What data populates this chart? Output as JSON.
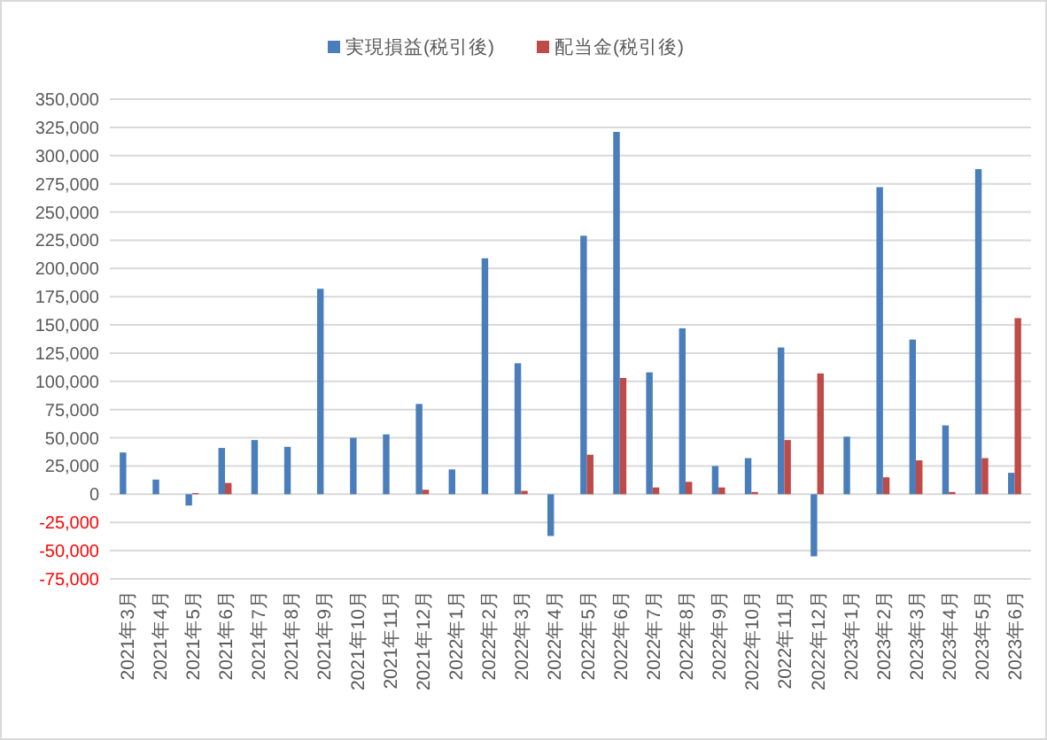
{
  "chart_data": {
    "type": "bar",
    "categories": [
      "2021年3月",
      "2021年4月",
      "2021年5月",
      "2021年6月",
      "2021年7月",
      "2021年8月",
      "2021年9月",
      "2021年10月",
      "2021年11月",
      "2021年12月",
      "2022年1月",
      "2022年2月",
      "2022年3月",
      "2022年4月",
      "2022年5月",
      "2022年6月",
      "2022年7月",
      "2022年8月",
      "2022年9月",
      "2022年10月",
      "2022年11月",
      "2022年12月",
      "2023年1月",
      "2023年2月",
      "2023年3月",
      "2023年4月",
      "2023年5月",
      "2023年6月"
    ],
    "series": [
      {
        "name": "実現損益(税引後)",
        "color": "#4a7ebb",
        "values": [
          37000,
          13000,
          -10000,
          41000,
          48000,
          42000,
          182000,
          50000,
          53000,
          80000,
          22000,
          209000,
          116000,
          -37000,
          229000,
          321000,
          108000,
          147000,
          25000,
          32000,
          130000,
          -55000,
          51000,
          272000,
          137000,
          61000,
          288000,
          19000
        ]
      },
      {
        "name": "配当金(税引後)",
        "color": "#be4b48",
        "values": [
          null,
          null,
          1000,
          10000,
          null,
          null,
          null,
          null,
          null,
          4000,
          null,
          null,
          3000,
          null,
          35000,
          103000,
          6000,
          11000,
          6000,
          2000,
          48000,
          107000,
          null,
          15000,
          30000,
          2000,
          32000,
          156000
        ]
      }
    ],
    "ylim": [
      -75000,
      350000
    ],
    "yticks": [
      {
        "value": -75000,
        "label": "-75,000"
      },
      {
        "value": -50000,
        "label": "-50,000"
      },
      {
        "value": -25000,
        "label": "-25,000"
      },
      0,
      {
        "value": 25000,
        "label": "25,000"
      },
      {
        "value": 50000,
        "label": "50,000"
      },
      {
        "value": 75000,
        "label": "75,000"
      },
      {
        "value": 100000,
        "label": "100,000"
      },
      {
        "value": 125000,
        "label": "125,000"
      },
      {
        "value": 150000,
        "label": "150,000"
      },
      {
        "value": 175000,
        "label": "175,000"
      },
      {
        "value": 200000,
        "label": "200,000"
      },
      {
        "value": 225000,
        "label": "225,000"
      },
      {
        "value": 250000,
        "label": "250,000"
      },
      {
        "value": 275000,
        "label": "275,000"
      },
      {
        "value": 300000,
        "label": "300,000"
      },
      {
        "value": 325000,
        "label": "325,000"
      },
      {
        "value": 350000,
        "label": "350,000"
      }
    ],
    "grid": "y",
    "legend": "top"
  }
}
